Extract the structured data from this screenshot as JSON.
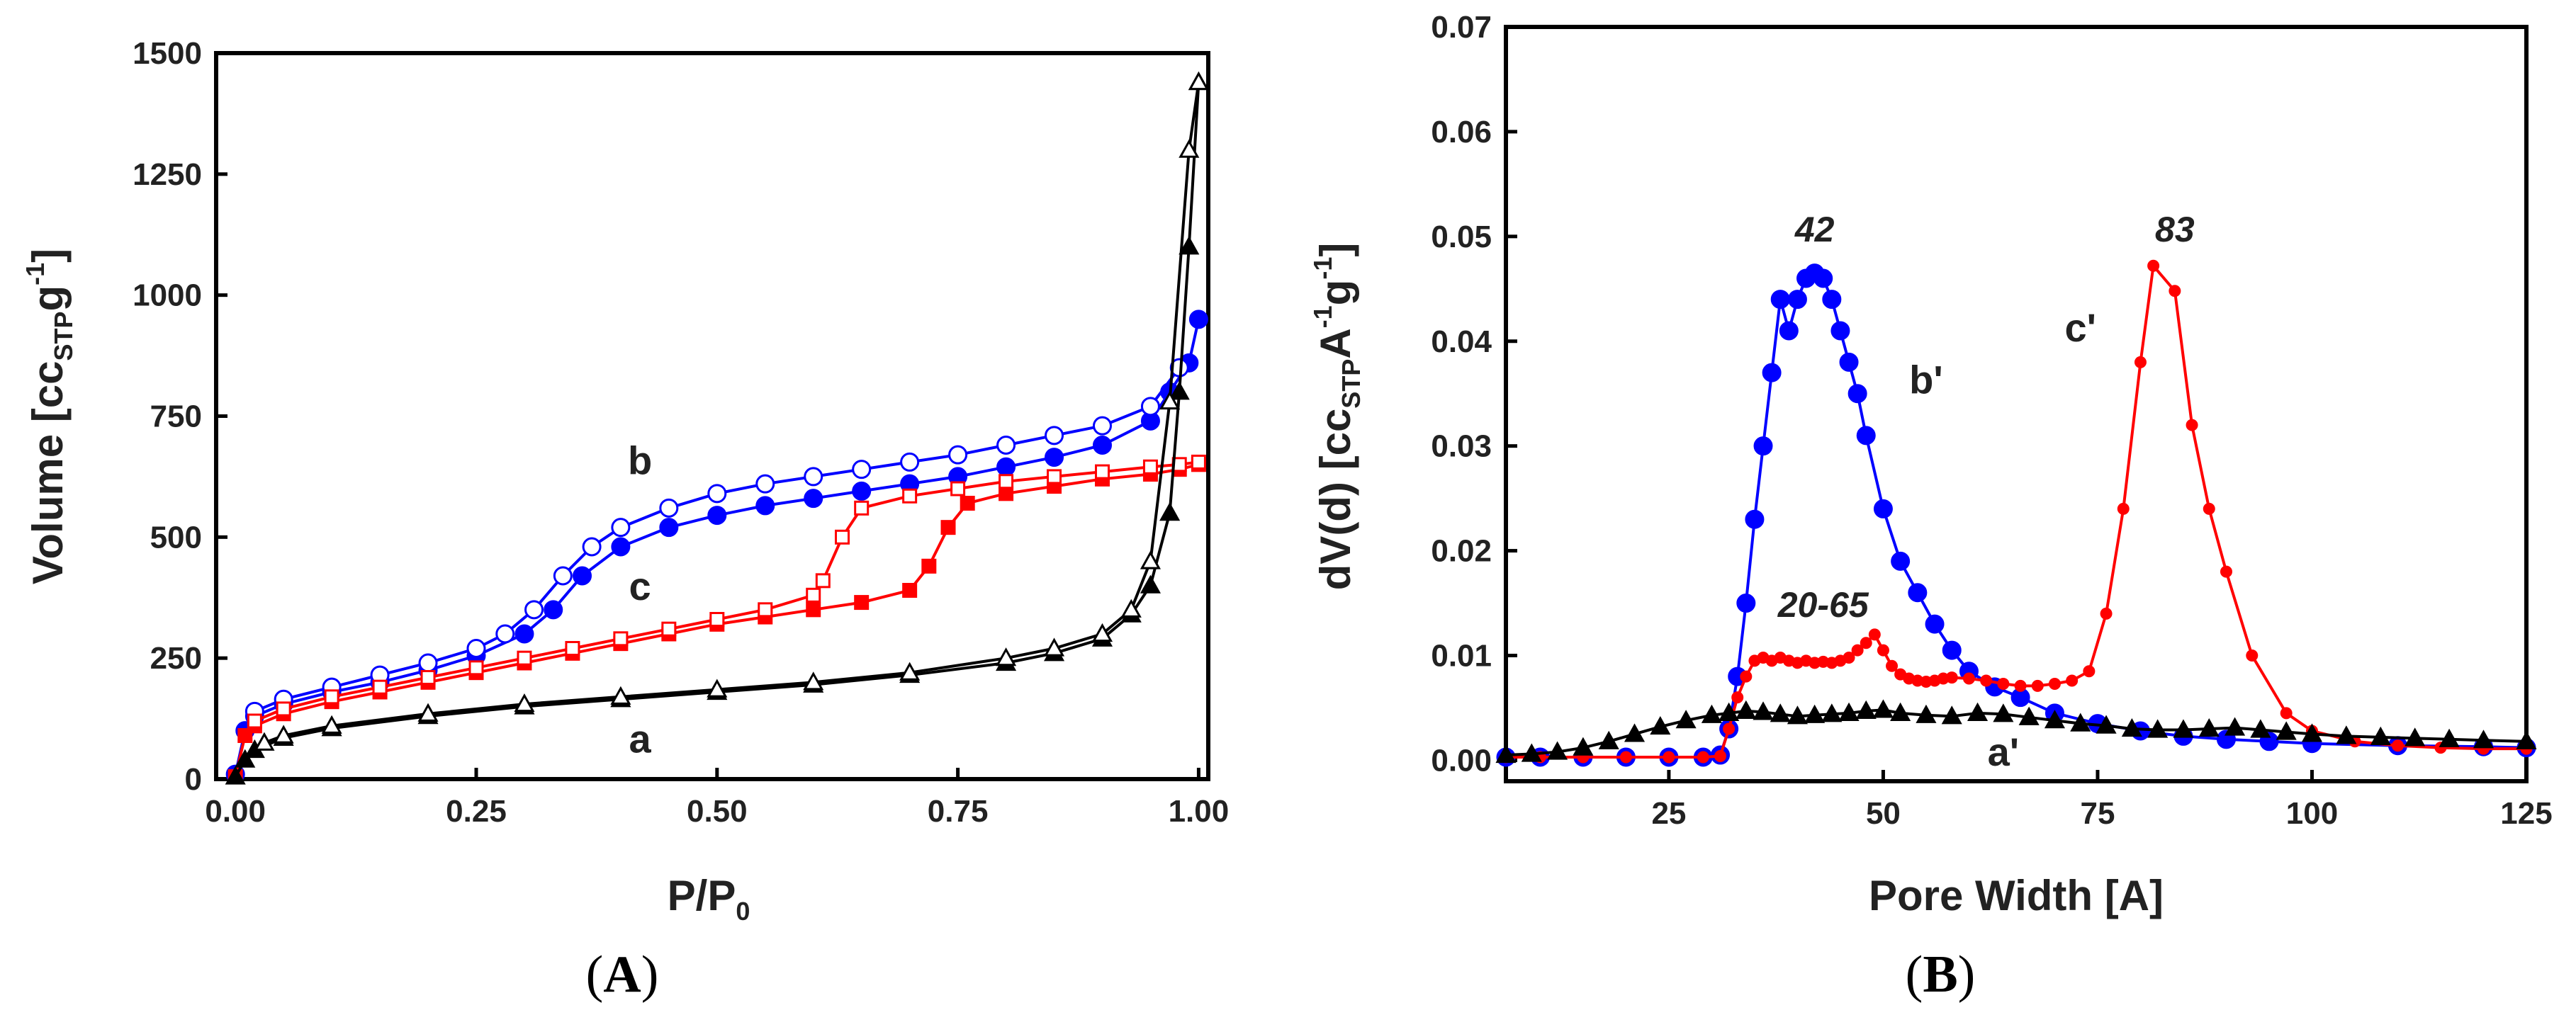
{
  "chart_data": [
    {
      "type": "line",
      "panel": "(A)",
      "panel_letter": "A",
      "xlabel": "P/P",
      "xlabel_sub": "0",
      "ylabel": "Volume [cc",
      "ylabel_sub": "STP",
      "ylabel_unit": "g",
      "ylabel_sup": "-1",
      "ylabel_close": "]",
      "xlim": [
        -0.02,
        1.01
      ],
      "ylim": [
        0,
        1500
      ],
      "xticks": [
        "0.00",
        "0.25",
        "0.50",
        "0.75",
        "1.00"
      ],
      "yticks": [
        "0",
        "250",
        "500",
        "750",
        "1000",
        "1250",
        "1500"
      ],
      "annotations": [
        "b",
        "c",
        "a"
      ],
      "series": [
        {
          "name": "b adsorption",
          "color": "#0000ff",
          "marker": "circle",
          "filled": true,
          "x": [
            0.0,
            0.01,
            0.02,
            0.05,
            0.1,
            0.15,
            0.2,
            0.25,
            0.3,
            0.33,
            0.36,
            0.4,
            0.45,
            0.5,
            0.55,
            0.6,
            0.65,
            0.7,
            0.75,
            0.8,
            0.85,
            0.9,
            0.95,
            0.97,
            0.99,
            1.0
          ],
          "y": [
            10,
            100,
            130,
            155,
            180,
            200,
            225,
            255,
            300,
            350,
            420,
            480,
            520,
            545,
            565,
            580,
            595,
            610,
            625,
            645,
            665,
            690,
            740,
            800,
            860,
            950
          ]
        },
        {
          "name": "b desorption",
          "color": "#0000ff",
          "marker": "circle",
          "filled": false,
          "x": [
            0.02,
            0.05,
            0.1,
            0.15,
            0.2,
            0.25,
            0.28,
            0.31,
            0.34,
            0.37,
            0.4,
            0.45,
            0.5,
            0.55,
            0.6,
            0.65,
            0.7,
            0.75,
            0.8,
            0.85,
            0.9,
            0.95,
            0.98
          ],
          "y": [
            140,
            165,
            190,
            215,
            240,
            270,
            300,
            350,
            420,
            480,
            520,
            560,
            590,
            610,
            625,
            640,
            655,
            670,
            690,
            710,
            730,
            770,
            850
          ]
        },
        {
          "name": "c adsorption",
          "color": "#ff0000",
          "marker": "square",
          "filled": true,
          "x": [
            0.0,
            0.01,
            0.02,
            0.05,
            0.1,
            0.15,
            0.2,
            0.25,
            0.3,
            0.35,
            0.4,
            0.45,
            0.5,
            0.55,
            0.6,
            0.65,
            0.7,
            0.72,
            0.74,
            0.76,
            0.8,
            0.85,
            0.9,
            0.95,
            0.98,
            1.0
          ],
          "y": [
            5,
            90,
            110,
            135,
            160,
            180,
            200,
            220,
            240,
            260,
            280,
            300,
            320,
            335,
            350,
            365,
            390,
            440,
            520,
            570,
            590,
            605,
            620,
            630,
            640,
            650
          ]
        },
        {
          "name": "c desorption",
          "color": "#ff0000",
          "marker": "square",
          "filled": false,
          "x": [
            0.02,
            0.05,
            0.1,
            0.15,
            0.2,
            0.25,
            0.3,
            0.35,
            0.4,
            0.45,
            0.5,
            0.55,
            0.6,
            0.61,
            0.63,
            0.65,
            0.7,
            0.75,
            0.8,
            0.85,
            0.9,
            0.95,
            0.98,
            1.0
          ],
          "y": [
            120,
            145,
            170,
            190,
            210,
            230,
            250,
            270,
            290,
            310,
            330,
            350,
            380,
            410,
            500,
            560,
            585,
            600,
            615,
            625,
            635,
            645,
            650,
            655
          ]
        },
        {
          "name": "a adsorption",
          "color": "#000000",
          "marker": "triangle",
          "filled": true,
          "x": [
            0.0,
            0.01,
            0.02,
            0.05,
            0.1,
            0.2,
            0.3,
            0.4,
            0.5,
            0.6,
            0.7,
            0.8,
            0.85,
            0.9,
            0.93,
            0.95,
            0.97,
            0.98,
            0.99,
            1.0
          ],
          "y": [
            5,
            40,
            60,
            85,
            105,
            130,
            150,
            165,
            180,
            195,
            215,
            240,
            260,
            290,
            340,
            400,
            550,
            800,
            1100,
            1440
          ]
        },
        {
          "name": "a desorption",
          "color": "#000000",
          "marker": "triangle",
          "filled": false,
          "x": [
            0.03,
            0.05,
            0.1,
            0.2,
            0.3,
            0.4,
            0.5,
            0.6,
            0.7,
            0.8,
            0.85,
            0.9,
            0.93,
            0.95,
            0.97,
            0.99,
            1.0
          ],
          "y": [
            75,
            90,
            110,
            135,
            155,
            170,
            185,
            200,
            220,
            250,
            270,
            300,
            350,
            450,
            780,
            1300,
            1440
          ]
        }
      ]
    },
    {
      "type": "line",
      "panel": "(B)",
      "panel_letter": "B",
      "xlabel": "Pore Width [A]",
      "ylabel": "dV(d) [cc",
      "ylabel_sub": "STP",
      "ylabel_unit": "A",
      "ylabel_sup": "-1",
      "ylabel_unit2": "g",
      "ylabel_sup2": "-1",
      "ylabel_close": "]",
      "xlim": [
        6,
        125
      ],
      "ylim": [
        -0.002,
        0.07
      ],
      "xticks": [
        "25",
        "50",
        "75",
        "100",
        "125"
      ],
      "yticks": [
        "0.00",
        "0.01",
        "0.02",
        "0.03",
        "0.04",
        "0.05",
        "0.06",
        "0.07"
      ],
      "annotations": [
        "b'",
        "c'",
        "a'",
        "42",
        "83",
        "20-65"
      ],
      "series": [
        {
          "name": "b'",
          "color": "#0000ff",
          "marker": "circle",
          "filled": true,
          "x": [
            6,
            10,
            15,
            20,
            25,
            29,
            31,
            32,
            33,
            34,
            35,
            36,
            37,
            38,
            39,
            40,
            41,
            42,
            43,
            44,
            45,
            46,
            47,
            48,
            50,
            52,
            54,
            56,
            58,
            60,
            63,
            66,
            70,
            75,
            80,
            85,
            90,
            95,
            100,
            110,
            120,
            125
          ],
          "y": [
            0.0003,
            0.0003,
            0.0003,
            0.0003,
            0.0003,
            0.0003,
            0.0005,
            0.003,
            0.008,
            0.015,
            0.023,
            0.03,
            0.037,
            0.044,
            0.041,
            0.044,
            0.046,
            0.0465,
            0.046,
            0.044,
            0.041,
            0.038,
            0.035,
            0.031,
            0.024,
            0.019,
            0.016,
            0.013,
            0.0105,
            0.0085,
            0.007,
            0.006,
            0.0045,
            0.0035,
            0.0028,
            0.0023,
            0.002,
            0.0018,
            0.0016,
            0.0014,
            0.0013,
            0.0012
          ]
        },
        {
          "name": "c'",
          "color": "#ff0000",
          "marker": "circle",
          "filled": true,
          "small": true,
          "x": [
            6,
            10,
            15,
            20,
            25,
            29,
            31,
            32,
            33,
            34,
            35,
            36,
            37,
            38,
            39,
            40,
            41,
            42,
            43,
            44,
            45,
            46,
            47,
            48,
            49,
            50,
            51,
            52,
            53,
            54,
            55,
            56,
            57,
            58,
            60,
            62,
            64,
            66,
            68,
            70,
            72,
            74,
            76,
            78,
            80,
            81.5,
            84,
            86,
            88,
            90,
            93,
            97,
            100,
            105,
            110,
            115,
            120,
            125
          ],
          "y": [
            0.0003,
            0.0003,
            0.0003,
            0.0003,
            0.0003,
            0.0003,
            0.0004,
            0.003,
            0.006,
            0.008,
            0.0095,
            0.0098,
            0.0095,
            0.0098,
            0.0095,
            0.0093,
            0.0095,
            0.0093,
            0.0094,
            0.0093,
            0.0095,
            0.0098,
            0.0105,
            0.0112,
            0.012,
            0.0105,
            0.009,
            0.0082,
            0.0078,
            0.0076,
            0.0075,
            0.0076,
            0.0078,
            0.0079,
            0.0078,
            0.0076,
            0.0073,
            0.0071,
            0.0071,
            0.0073,
            0.0076,
            0.0085,
            0.014,
            0.024,
            0.038,
            0.0472,
            0.0448,
            0.032,
            0.024,
            0.018,
            0.01,
            0.0045,
            0.0028,
            0.0018,
            0.0014,
            0.0012,
            0.0011,
            0.0011
          ]
        },
        {
          "name": "a'",
          "color": "#000000",
          "marker": "triangle",
          "filled": true,
          "x": [
            6,
            9,
            12,
            15,
            18,
            21,
            24,
            27,
            30,
            32,
            34,
            36,
            38,
            40,
            42,
            44,
            46,
            48,
            50,
            52,
            55,
            58,
            61,
            64,
            67,
            70,
            73,
            76,
            79,
            82,
            85,
            88,
            91,
            94,
            97,
            100,
            104,
            108,
            112,
            116,
            120,
            125
          ],
          "y": [
            0.0005,
            0.0006,
            0.0008,
            0.0012,
            0.0018,
            0.0025,
            0.0032,
            0.0038,
            0.0043,
            0.0045,
            0.0047,
            0.0046,
            0.0044,
            0.0042,
            0.0043,
            0.0044,
            0.0045,
            0.0047,
            0.0048,
            0.0045,
            0.0043,
            0.0042,
            0.0045,
            0.0044,
            0.0041,
            0.0038,
            0.0035,
            0.0033,
            0.003,
            0.0029,
            0.0029,
            0.003,
            0.0031,
            0.0029,
            0.0027,
            0.0025,
            0.0023,
            0.0022,
            0.0021,
            0.002,
            0.0019,
            0.0018
          ]
        }
      ]
    }
  ]
}
